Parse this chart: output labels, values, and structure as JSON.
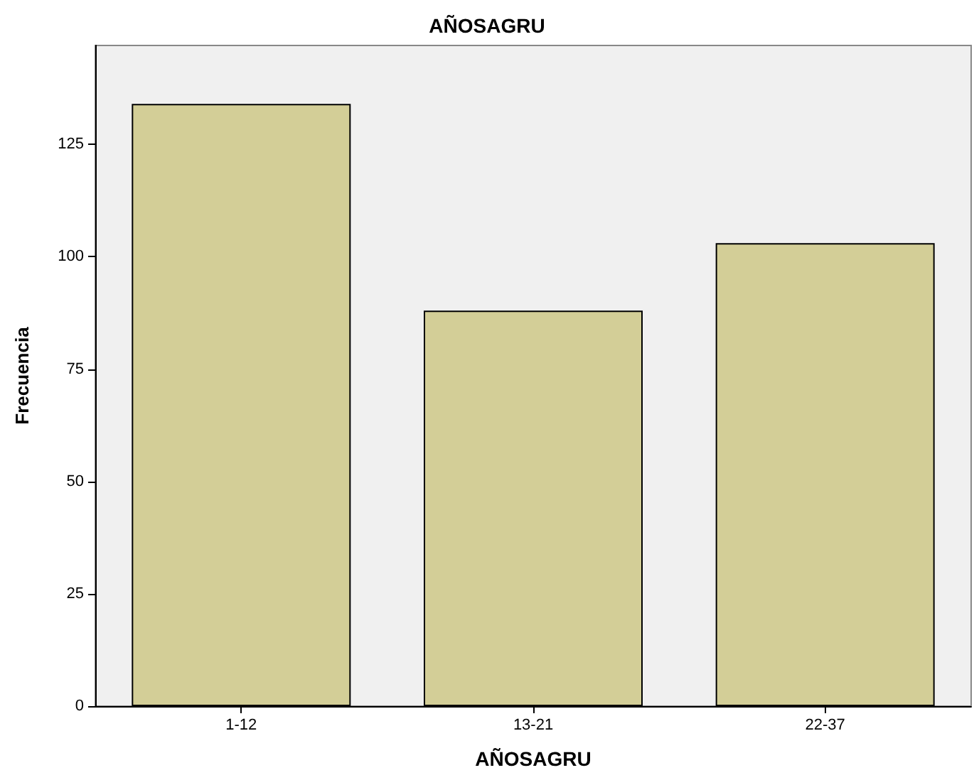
{
  "chart_data": {
    "type": "bar",
    "title": "AÑOSAGRU",
    "xlabel": "AÑOSAGRU",
    "ylabel": "Frecuencia",
    "categories": [
      "1-12",
      "13-21",
      "22-37"
    ],
    "values": [
      134,
      88,
      103
    ],
    "color": "#d3ce97",
    "ylim": [
      0,
      147
    ],
    "yticks": [
      0,
      25,
      50,
      75,
      100,
      125
    ],
    "grid": false
  }
}
